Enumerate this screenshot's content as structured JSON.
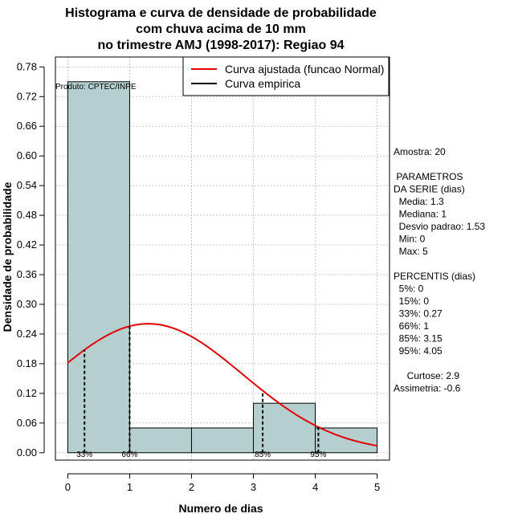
{
  "chart_data": {
    "type": "bar",
    "title": [
      "Histograma e curva de densidade de probabilidade",
      "com chuva acima de 10 mm",
      "no trimestre AMJ (1998-2017): Regiao 94"
    ],
    "xlabel": "Numero de dias",
    "ylabel": "Densidade de probabilidade",
    "xlim": [
      -0.2,
      5.2
    ],
    "ylim": [
      -0.015,
      0.8
    ],
    "x_ticks": [
      0,
      1,
      2,
      3,
      4,
      5
    ],
    "y_ticks": [
      0.0,
      0.06,
      0.12,
      0.18,
      0.24,
      0.3,
      0.36,
      0.42,
      0.48,
      0.54,
      0.6,
      0.66,
      0.72,
      0.78
    ],
    "y_tick_labels": [
      "0.00",
      "0.06",
      "0.12",
      "0.18",
      "0.24",
      "0.30",
      "0.36",
      "0.42",
      "0.48",
      "0.54",
      "0.60",
      "0.66",
      "0.72",
      "0.78"
    ],
    "grid": true,
    "bins": [
      {
        "x0": 0,
        "x1": 1,
        "density": 0.75
      },
      {
        "x0": 1,
        "x1": 2,
        "density": 0.05
      },
      {
        "x0": 2,
        "x1": 3,
        "density": 0.05
      },
      {
        "x0": 3,
        "x1": 4,
        "density": 0.1
      },
      {
        "x0": 4,
        "x1": 5,
        "density": 0.05
      }
    ],
    "bar_color": "#b5cece",
    "normal_curve": {
      "name": "Curva ajustada (funcao Normal)",
      "color": "#e00000",
      "mean": 1.3,
      "sd": 1.53,
      "x_range": [
        0,
        5
      ]
    },
    "empirical_curve": {
      "name": "Curva empirica",
      "color": "#000000"
    },
    "legend_position": "top-right",
    "percentile_markers": [
      {
        "label": "33%",
        "x": 0.27
      },
      {
        "label": "66%",
        "x": 1.0
      },
      {
        "label": "85%",
        "x": 3.15
      },
      {
        "label": "95%",
        "x": 4.05
      }
    ],
    "product_label": "Produto: CPTEC/INPE",
    "stats_lines": [
      "Amostra: 20",
      "",
      " PARAMETROS",
      "DA SERIE (dias)",
      "  Media: 1.3",
      "  Mediana: 1",
      "  Desvio padrao: 1.53",
      "  Min: 0",
      "  Max: 5",
      "",
      "PERCENTIS (dias)",
      "  5%: 0",
      "  15%: 0",
      "  33%: 0.27",
      "  66%: 1",
      "  85%: 3.15",
      "  95%: 4.05",
      "",
      "     Curtose: 2.9",
      "Assimetria: -0.6"
    ]
  }
}
